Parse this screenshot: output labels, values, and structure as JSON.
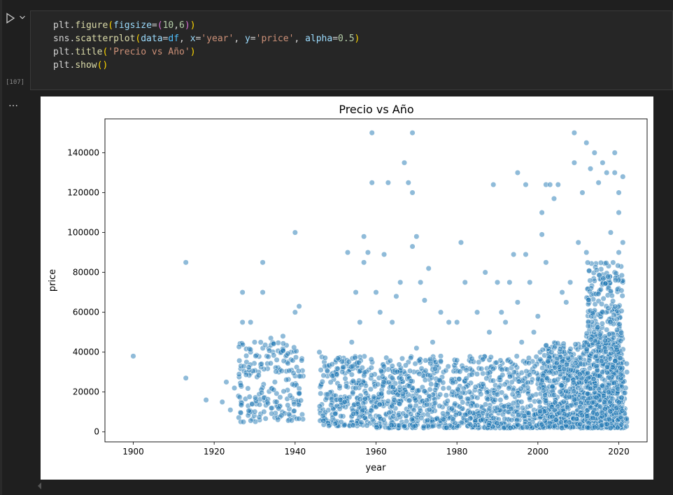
{
  "cell": {
    "execution_count": "[107]",
    "output_ellipsis": "…",
    "code_lines": [
      [
        {
          "t": "plt.",
          "c": "tok-plain"
        },
        {
          "t": "figure",
          "c": "tok-fn"
        },
        {
          "t": "(",
          "c": "tok-paren"
        },
        {
          "t": "figsize",
          "c": "tok-kw"
        },
        {
          "t": "=",
          "c": "tok-plain"
        },
        {
          "t": "(",
          "c": "tok-paren2"
        },
        {
          "t": "10",
          "c": "tok-num"
        },
        {
          "t": ",",
          "c": "tok-plain"
        },
        {
          "t": "6",
          "c": "tok-num"
        },
        {
          "t": ")",
          "c": "tok-paren2"
        },
        {
          "t": ")",
          "c": "tok-paren"
        }
      ],
      [
        {
          "t": "sns.",
          "c": "tok-plain"
        },
        {
          "t": "scatterplot",
          "c": "tok-fn"
        },
        {
          "t": "(",
          "c": "tok-paren"
        },
        {
          "t": "data",
          "c": "tok-kw"
        },
        {
          "t": "=",
          "c": "tok-plain"
        },
        {
          "t": "df",
          "c": "tok-var"
        },
        {
          "t": ", ",
          "c": "tok-plain"
        },
        {
          "t": "x",
          "c": "tok-kw"
        },
        {
          "t": "=",
          "c": "tok-plain"
        },
        {
          "t": "'year'",
          "c": "tok-str"
        },
        {
          "t": ", ",
          "c": "tok-plain"
        },
        {
          "t": "y",
          "c": "tok-kw"
        },
        {
          "t": "=",
          "c": "tok-plain"
        },
        {
          "t": "'price'",
          "c": "tok-str"
        },
        {
          "t": ", ",
          "c": "tok-plain"
        },
        {
          "t": "alpha",
          "c": "tok-kw"
        },
        {
          "t": "=",
          "c": "tok-plain"
        },
        {
          "t": "0.5",
          "c": "tok-num"
        },
        {
          "t": ")",
          "c": "tok-paren"
        }
      ],
      [
        {
          "t": "plt.",
          "c": "tok-plain"
        },
        {
          "t": "title",
          "c": "tok-fn"
        },
        {
          "t": "(",
          "c": "tok-paren"
        },
        {
          "t": "'Precio vs Año'",
          "c": "tok-str"
        },
        {
          "t": ")",
          "c": "tok-paren"
        }
      ],
      [
        {
          "t": "plt.",
          "c": "tok-plain"
        },
        {
          "t": "show",
          "c": "tok-fn"
        },
        {
          "t": "(",
          "c": "tok-paren"
        },
        {
          "t": ")",
          "c": "tok-paren"
        }
      ]
    ]
  },
  "chart_data": {
    "type": "scatter",
    "title": "Precio vs Año",
    "xlabel": "year",
    "ylabel": "price",
    "xlim": [
      1893,
      2027
    ],
    "ylim": [
      -5000,
      157000
    ],
    "xticks": [
      1900,
      1920,
      1940,
      1960,
      1980,
      2000,
      2020
    ],
    "yticks": [
      0,
      20000,
      40000,
      60000,
      80000,
      100000,
      120000,
      140000
    ],
    "color": "#1f77b4",
    "alpha": 0.5,
    "grid": false,
    "points": [
      [
        1900,
        38000
      ],
      [
        1913,
        85000
      ],
      [
        1913,
        27000
      ],
      [
        1918,
        16000
      ],
      [
        1922,
        15000
      ],
      [
        1923,
        25000
      ],
      [
        1924,
        11000
      ],
      [
        1925,
        22000
      ],
      [
        1926,
        18000
      ],
      [
        1927,
        70000
      ],
      [
        1927,
        55000
      ],
      [
        1928,
        35000
      ],
      [
        1929,
        55000
      ],
      [
        1929,
        40000
      ],
      [
        1930,
        45000
      ],
      [
        1931,
        30000
      ],
      [
        1932,
        85000
      ],
      [
        1932,
        70000
      ],
      [
        1933,
        38000
      ],
      [
        1934,
        47000
      ],
      [
        1935,
        25000
      ],
      [
        1936,
        30000
      ],
      [
        1937,
        48000
      ],
      [
        1938,
        35000
      ],
      [
        1939,
        40000
      ],
      [
        1940,
        100000
      ],
      [
        1940,
        60000
      ],
      [
        1941,
        63000
      ],
      [
        1942,
        28000
      ],
      [
        1946,
        40000
      ],
      [
        1948,
        28000
      ],
      [
        1950,
        35000
      ],
      [
        1952,
        37000
      ],
      [
        1953,
        90000
      ],
      [
        1954,
        45000
      ],
      [
        1955,
        70000
      ],
      [
        1956,
        55000
      ],
      [
        1957,
        98000
      ],
      [
        1957,
        85000
      ],
      [
        1958,
        90000
      ],
      [
        1959,
        150000
      ],
      [
        1959,
        125000
      ],
      [
        1960,
        70000
      ],
      [
        1961,
        60000
      ],
      [
        1962,
        89000
      ],
      [
        1963,
        125000
      ],
      [
        1964,
        55000
      ],
      [
        1965,
        68000
      ],
      [
        1966,
        75000
      ],
      [
        1967,
        135000
      ],
      [
        1968,
        125000
      ],
      [
        1969,
        150000
      ],
      [
        1969,
        120000
      ],
      [
        1969,
        93000
      ],
      [
        1970,
        98000
      ],
      [
        1971,
        75000
      ],
      [
        1972,
        66000
      ],
      [
        1973,
        82000
      ],
      [
        1974,
        45000
      ],
      [
        1976,
        60000
      ],
      [
        1978,
        55000
      ],
      [
        1980,
        55000
      ],
      [
        1981,
        95000
      ],
      [
        1982,
        75000
      ],
      [
        1985,
        60000
      ],
      [
        1987,
        80000
      ],
      [
        1988,
        50000
      ],
      [
        1989,
        124000
      ],
      [
        1990,
        75000
      ],
      [
        1991,
        60000
      ],
      [
        1992,
        55000
      ],
      [
        1993,
        75000
      ],
      [
        1994,
        89000
      ],
      [
        1995,
        130000
      ],
      [
        1995,
        65000
      ],
      [
        1996,
        45000
      ],
      [
        1997,
        124000
      ],
      [
        1997,
        89000
      ],
      [
        1998,
        75000
      ],
      [
        1999,
        50000
      ],
      [
        2000,
        58000
      ],
      [
        2001,
        99000
      ],
      [
        2001,
        110000
      ],
      [
        2002,
        124000
      ],
      [
        2002,
        85000
      ],
      [
        2003,
        124000
      ],
      [
        2004,
        117000
      ],
      [
        2005,
        124000
      ],
      [
        2006,
        70000
      ],
      [
        2007,
        65000
      ],
      [
        2008,
        75000
      ],
      [
        2009,
        150000
      ],
      [
        2009,
        135000
      ],
      [
        2010,
        95000
      ],
      [
        2011,
        120000
      ],
      [
        2012,
        145000
      ],
      [
        2012,
        90000
      ],
      [
        2013,
        132000
      ],
      [
        2014,
        140000
      ],
      [
        2015,
        125000
      ],
      [
        2016,
        135000
      ],
      [
        2017,
        130000
      ],
      [
        2018,
        100000
      ],
      [
        2019,
        130000
      ],
      [
        2019,
        140000
      ],
      [
        2020,
        120000
      ],
      [
        2020,
        110000
      ],
      [
        2021,
        128000
      ],
      [
        2021,
        95000
      ],
      [
        2022,
        30000
      ],
      [
        1949,
        20000
      ],
      [
        1951,
        22000
      ],
      [
        1953,
        14000
      ],
      [
        1955,
        10000
      ],
      [
        1957,
        25000
      ],
      [
        1958,
        18000
      ],
      [
        1959,
        12000
      ],
      [
        1960,
        8000
      ],
      [
        1962,
        15000
      ],
      [
        1964,
        20000
      ],
      [
        1966,
        30000
      ],
      [
        1968,
        35000
      ],
      [
        1970,
        42000
      ],
      [
        1972,
        28000
      ],
      [
        1974,
        33000
      ],
      [
        1976,
        38000
      ],
      [
        1978,
        22000
      ],
      [
        1980,
        19000
      ],
      [
        1982,
        26000
      ],
      [
        1984,
        30000
      ],
      [
        1986,
        24000
      ],
      [
        1988,
        28000
      ],
      [
        1990,
        20000
      ],
      [
        1992,
        18000
      ],
      [
        1994,
        22000
      ],
      [
        1996,
        26000
      ],
      [
        1998,
        30000
      ],
      [
        2000,
        24000
      ],
      [
        2002,
        28000
      ],
      [
        2004,
        32000
      ],
      [
        2006,
        36000
      ],
      [
        2008,
        40000
      ],
      [
        2010,
        44000
      ],
      [
        2012,
        48000
      ],
      [
        2014,
        52000
      ],
      [
        2016,
        60000
      ],
      [
        2018,
        70000
      ],
      [
        2019,
        80000
      ],
      [
        2020,
        90000
      ],
      [
        2021,
        75000
      ],
      [
        2017,
        45000
      ],
      [
        2015,
        38000
      ]
    ],
    "dense_region": {
      "description_points": [
        {
          "year_range": [
            1946,
            2022
          ],
          "price_range": [
            2000,
            40000
          ]
        },
        {
          "year_range": [
            2012,
            2021
          ],
          "price_range": [
            2000,
            90000
          ]
        }
      ]
    }
  }
}
